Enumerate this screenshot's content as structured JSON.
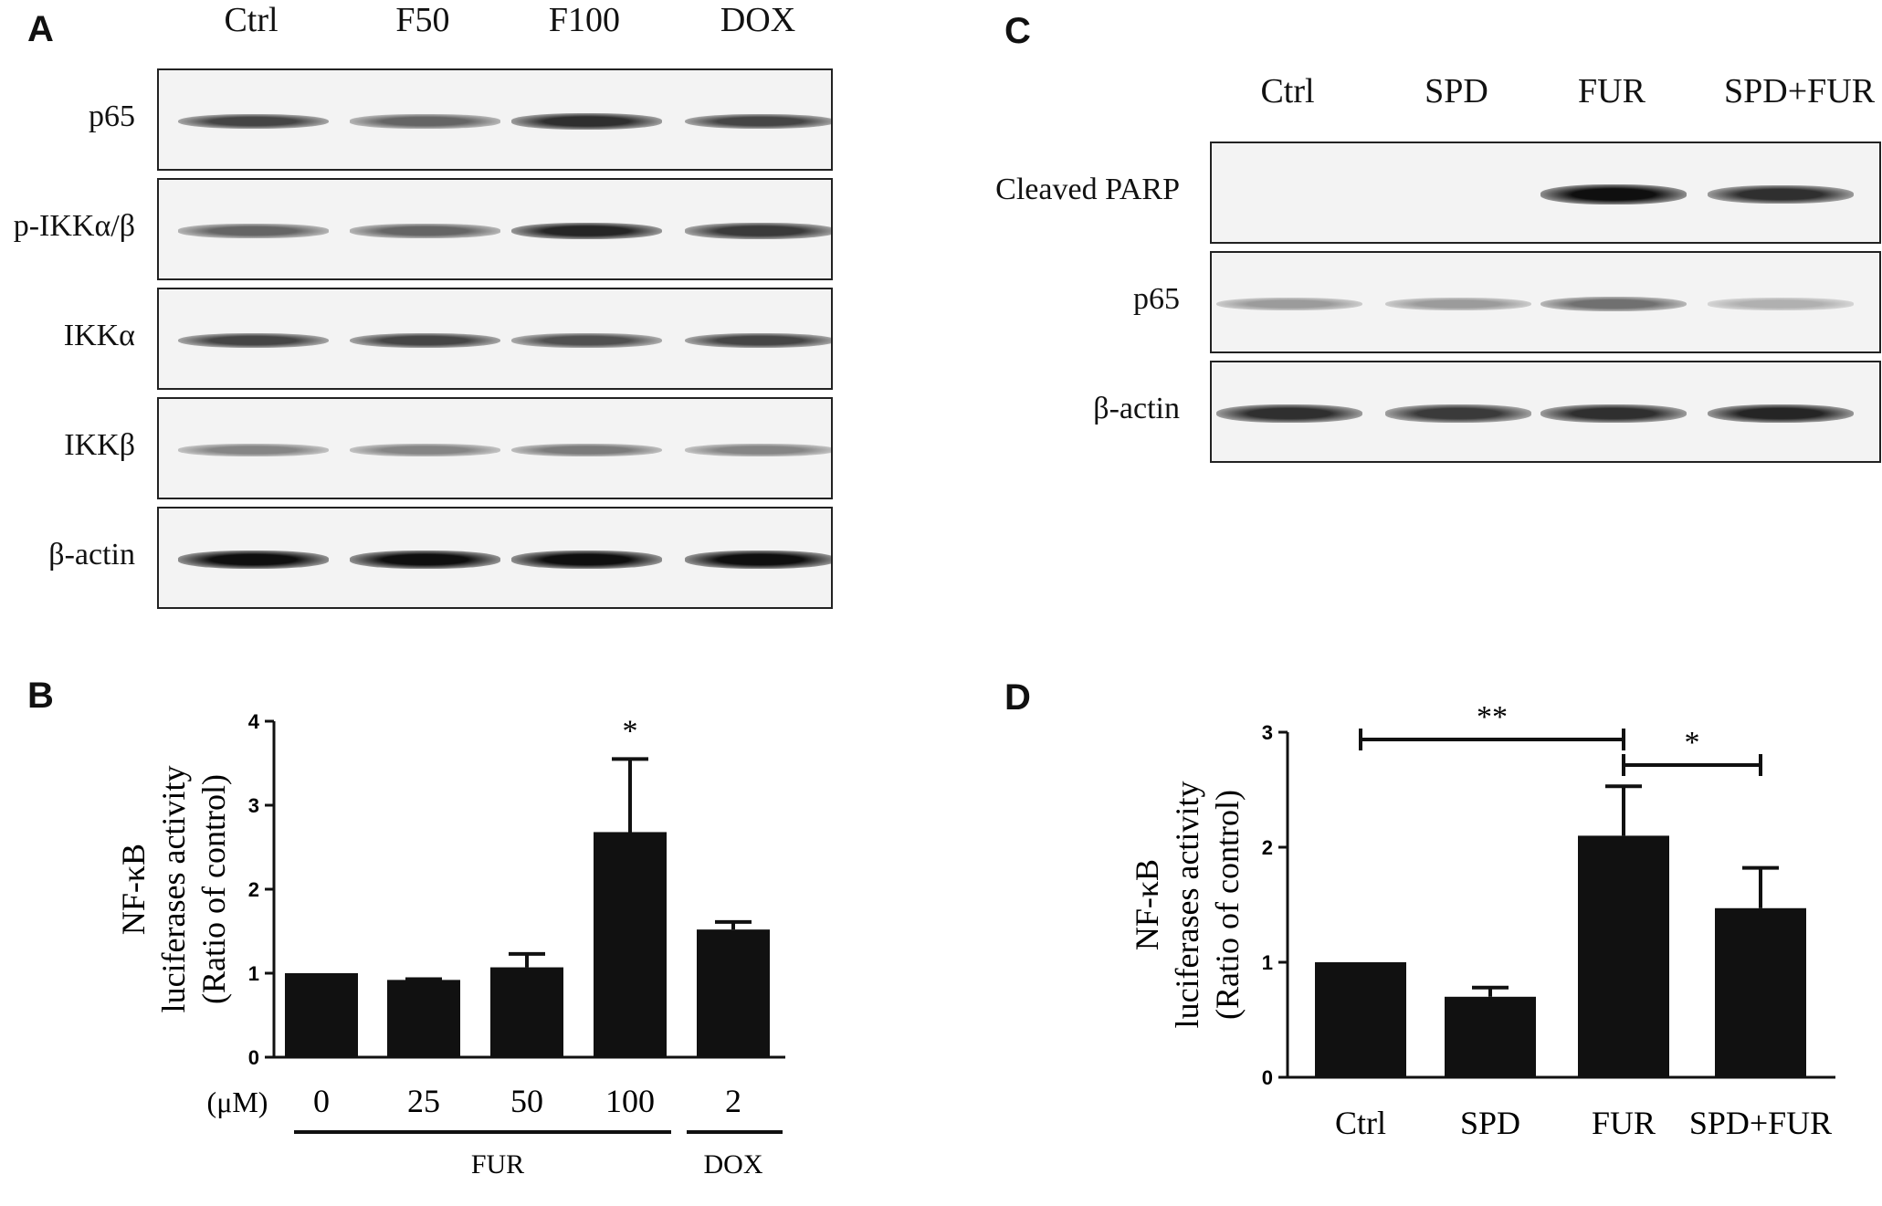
{
  "panelA": {
    "letter": "A",
    "lanes": [
      "Ctrl",
      "F50",
      "F100",
      "DOX"
    ],
    "rows": [
      {
        "label": "p65",
        "intensity": [
          0.75,
          0.6,
          0.85,
          0.75
        ]
      },
      {
        "label": "p-IKKα/β",
        "intensity": [
          0.6,
          0.6,
          0.9,
          0.8
        ]
      },
      {
        "label": "IKKα",
        "intensity": [
          0.75,
          0.75,
          0.7,
          0.75
        ]
      },
      {
        "label": "IKKβ",
        "intensity": [
          0.45,
          0.45,
          0.5,
          0.45
        ]
      },
      {
        "label": "β-actin",
        "intensity": [
          1,
          1,
          1,
          1
        ]
      }
    ]
  },
  "panelC": {
    "letter": "C",
    "lanes": [
      "Ctrl",
      "SPD",
      "FUR",
      "SPD+FUR"
    ],
    "rows": [
      {
        "label": "Cleaved PARP",
        "intensity": [
          0,
          0,
          1,
          0.85
        ]
      },
      {
        "label": "p65",
        "intensity": [
          0.35,
          0.35,
          0.55,
          0.25
        ]
      },
      {
        "label": "β-actin",
        "intensity": [
          0.85,
          0.8,
          0.85,
          0.9
        ]
      }
    ]
  },
  "panelB": {
    "letter": "B",
    "unit_label": "(μM)",
    "group_labels": [
      "FUR",
      "DOX"
    ],
    "significance": [
      "*"
    ]
  },
  "panelD": {
    "letter": "D",
    "significance": [
      "**",
      "*"
    ]
  },
  "chart_data": [
    {
      "panel": "B",
      "type": "bar",
      "categories": [
        "0",
        "25",
        "50",
        "100",
        "2"
      ],
      "values": [
        1.0,
        0.92,
        1.07,
        2.68,
        1.52
      ],
      "errors": [
        0.0,
        0.01,
        0.16,
        0.87,
        0.09
      ],
      "ylabel": [
        "NF-κB",
        "luciferases activity",
        "(Ratio of control)"
      ],
      "ylim": [
        0,
        4
      ],
      "yticks": [
        "0",
        "1",
        "2",
        "3",
        "4"
      ],
      "annotations": [
        {
          "category": "100",
          "text": "*"
        }
      ]
    },
    {
      "panel": "D",
      "type": "bar",
      "categories": [
        "Ctrl",
        "SPD",
        "FUR",
        "SPD+FUR"
      ],
      "values": [
        1.0,
        0.7,
        2.1,
        1.47
      ],
      "errors": [
        0.0,
        0.08,
        0.43,
        0.35
      ],
      "ylabel": [
        "NF-κB",
        "luciferases activity",
        "(Ratio of control)"
      ],
      "ylim": [
        0,
        3
      ],
      "yticks": [
        "0",
        "1",
        "2",
        "3"
      ],
      "comparisons": [
        {
          "from": "Ctrl",
          "to": "FUR",
          "text": "**"
        },
        {
          "from": "FUR",
          "to": "SPD+FUR",
          "text": "*"
        }
      ]
    }
  ]
}
